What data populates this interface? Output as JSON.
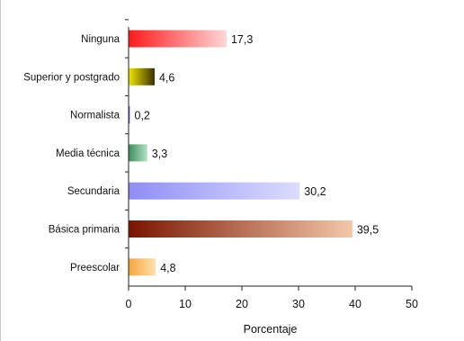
{
  "chart_data": {
    "type": "bar",
    "orientation": "horizontal",
    "title": "",
    "xlabel": "Porcentaje",
    "ylabel": "",
    "xlim": [
      0,
      50
    ],
    "xticks": [
      0,
      10,
      20,
      30,
      40,
      50
    ],
    "grid": false,
    "categories": [
      "Ninguna",
      "Superior y postgrado",
      "Normalista",
      "Media técnica",
      "Secundaria",
      "Básica primaria",
      "Preescolar"
    ],
    "values": [
      17.3,
      4.6,
      0.2,
      3.3,
      30.2,
      39.5,
      4.8
    ],
    "value_labels": [
      "17,3",
      "4,6",
      "0,2",
      "3,3",
      "30,2",
      "39,5",
      "4,8"
    ],
    "bar_colors": [
      [
        "#ff1a1a",
        "#ffd6d6"
      ],
      [
        "#f2e600",
        "#3a3000"
      ],
      [
        "#1a1a8c",
        "#9a9ae8"
      ],
      [
        "#3a8f5e",
        "#b6e0c4"
      ],
      [
        "#8e8ef6",
        "#dcdcff"
      ],
      [
        "#7a1500",
        "#f3c7a8"
      ],
      [
        "#f5a43c",
        "#ffe2b0"
      ]
    ]
  }
}
